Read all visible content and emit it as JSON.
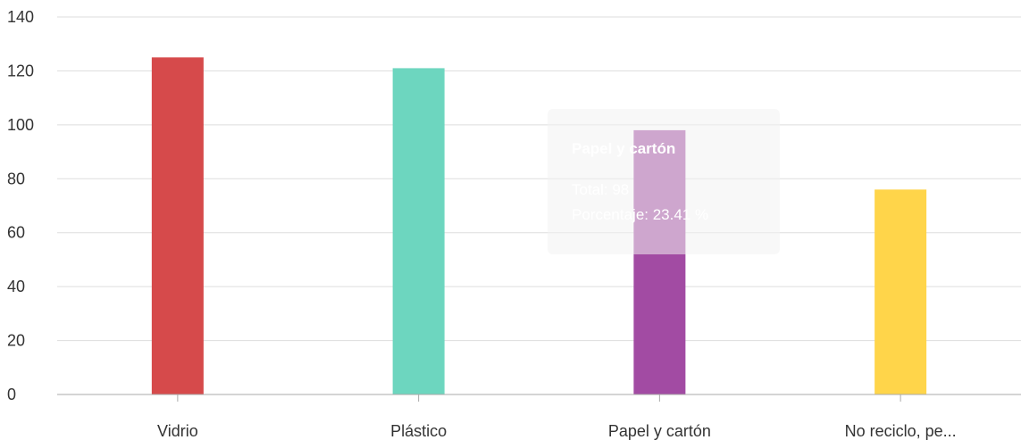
{
  "chart_data": {
    "type": "bar",
    "categories": [
      "Vidrio",
      "Plástico",
      "Papel y cartón",
      "No reciclo, pe..."
    ],
    "values": [
      125,
      121,
      98,
      76
    ],
    "colors": [
      "#d64a4b",
      "#6dd6bf",
      "#a24ba3",
      "#ffd54a"
    ],
    "ylim": [
      0,
      140
    ],
    "yticks": [
      0,
      20,
      40,
      60,
      80,
      100,
      120,
      140
    ],
    "grid": true,
    "title": "",
    "xlabel": "",
    "ylabel": ""
  },
  "tooltip": {
    "title": "Papel y cartón",
    "line1": "Total: 98",
    "line2": "Porcentaje: 23.41 %"
  }
}
